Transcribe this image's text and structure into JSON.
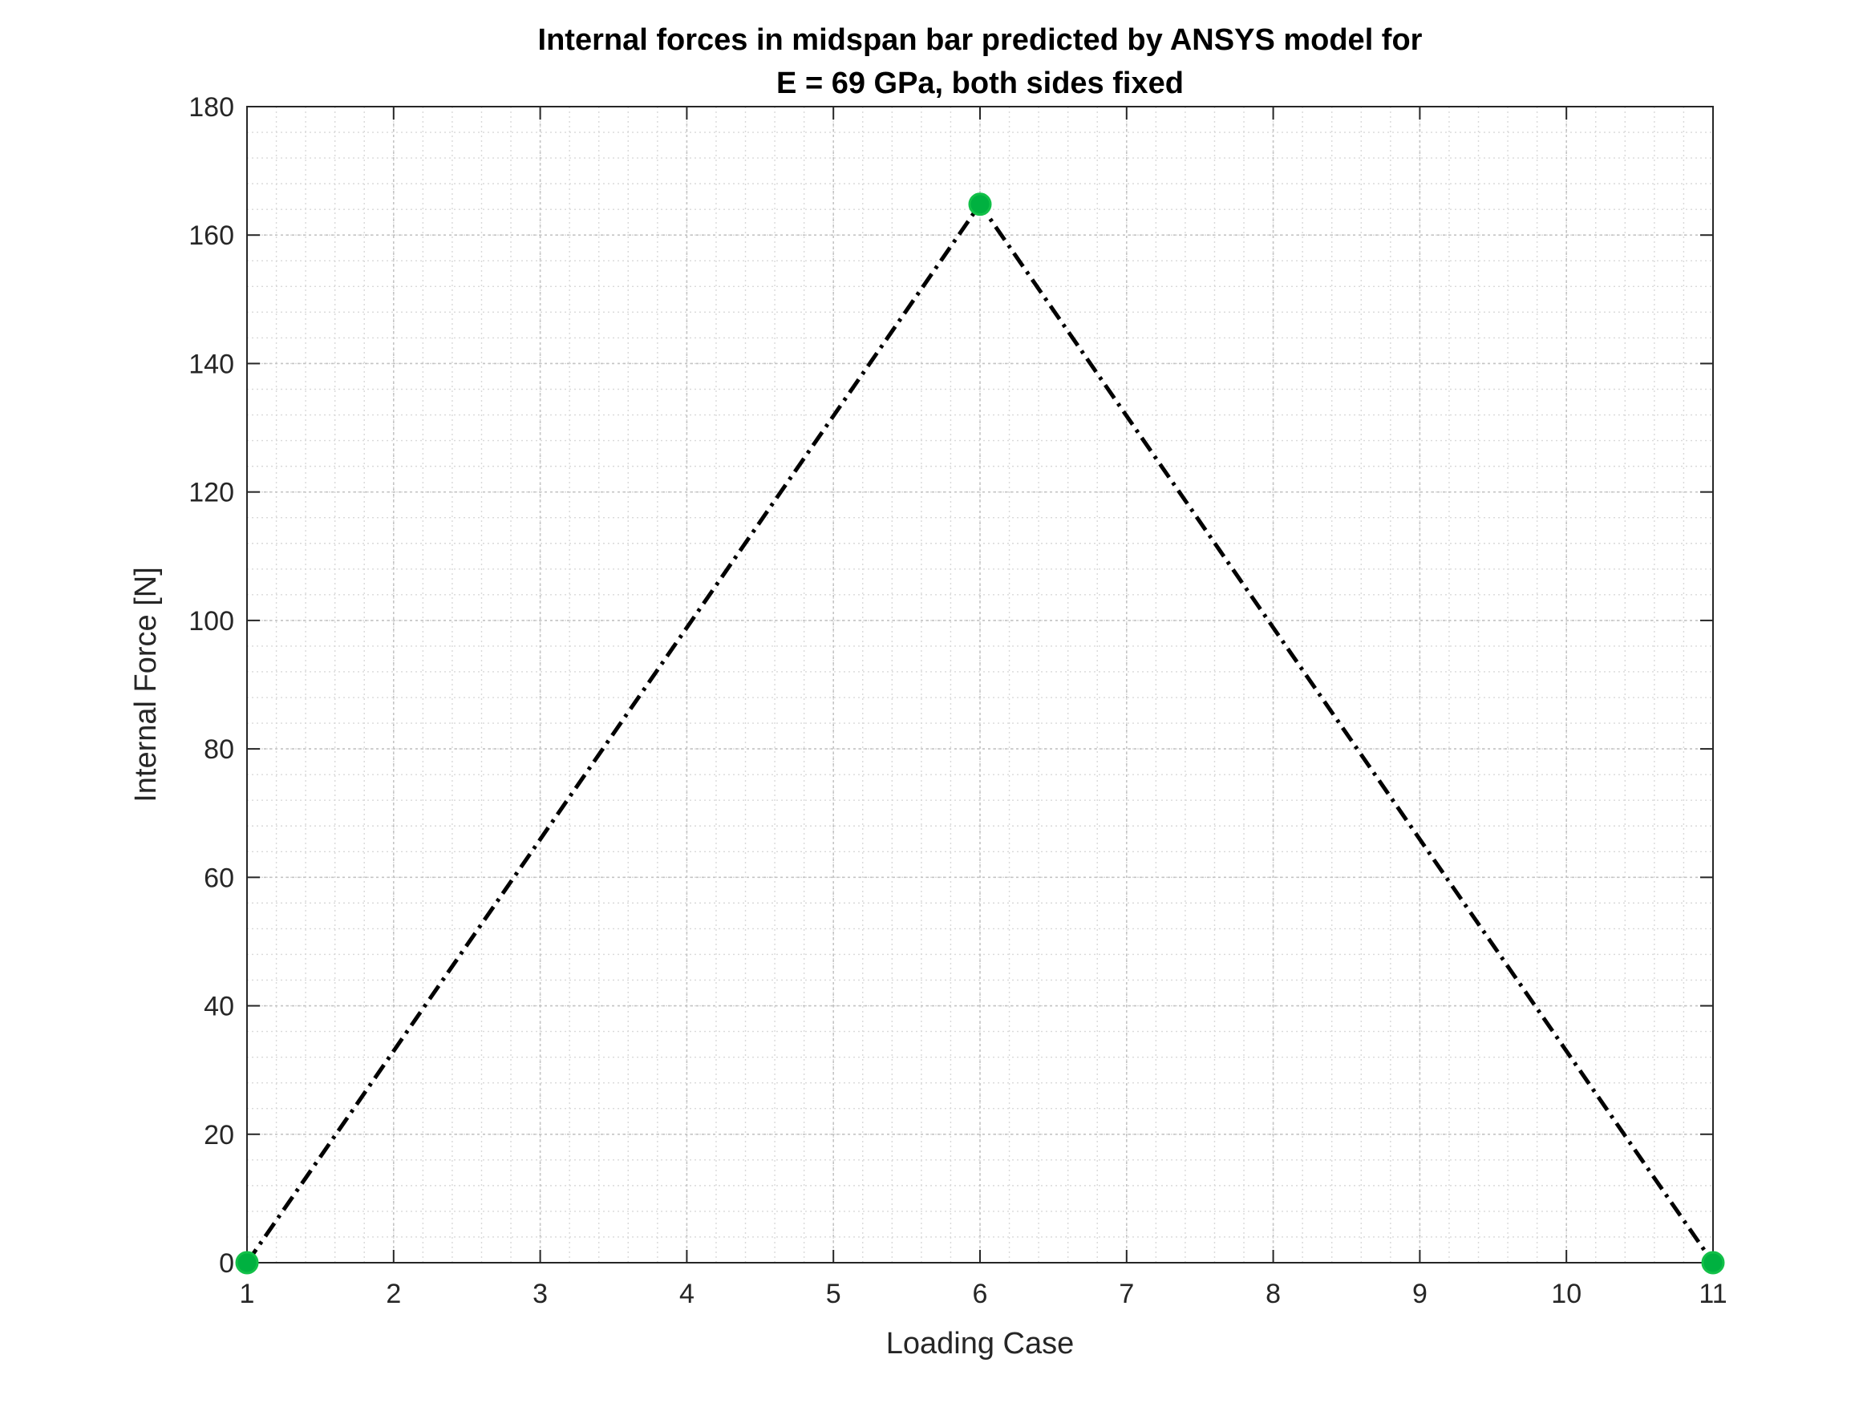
{
  "chart_data": {
    "type": "line",
    "title": [
      "Internal forces in midspan bar predicted by ANSYS model for",
      "E = 69 GPa, both sides fixed"
    ],
    "xlabel": "Loading Case",
    "ylabel": "Internal Force [N]",
    "xlim": [
      1,
      11
    ],
    "ylim": [
      0,
      180
    ],
    "xticks": [
      1,
      2,
      3,
      4,
      5,
      6,
      7,
      8,
      9,
      10,
      11
    ],
    "yticks": [
      0,
      20,
      40,
      60,
      80,
      100,
      120,
      140,
      160,
      180
    ],
    "grid": "major and minor (dotted)",
    "series": [
      {
        "line_style": "dash-dot",
        "line_color": "#000000",
        "x": [
          1,
          6,
          11
        ],
        "y": [
          0,
          164.8,
          0
        ]
      }
    ],
    "markers": {
      "color": "#00b140",
      "x": [
        1,
        6,
        11
      ],
      "y": [
        0,
        164.8,
        0
      ]
    }
  }
}
